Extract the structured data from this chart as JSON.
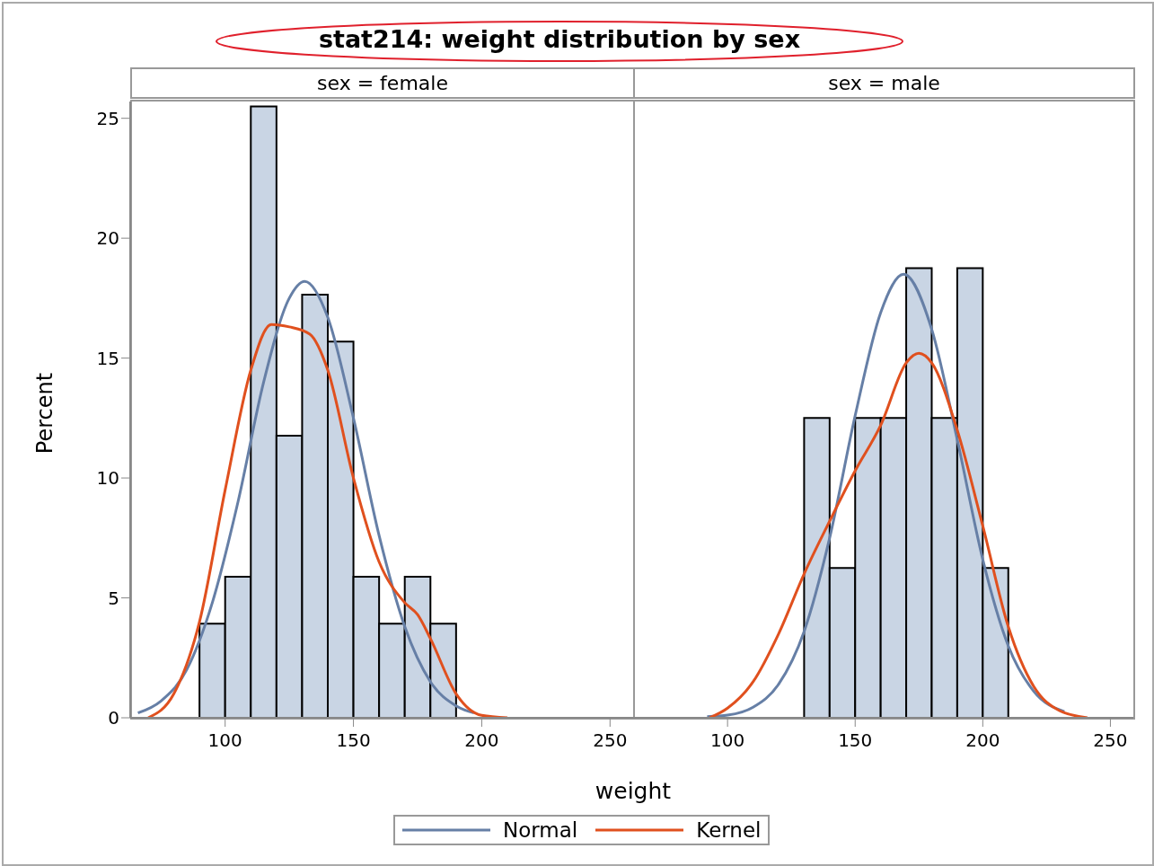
{
  "chart_data": [
    {
      "type": "histogram",
      "title": "stat214: weight distribution by sex",
      "subtitle": "sex = female",
      "xlabel": "weight",
      "ylabel": "Percent",
      "bins": [
        90,
        100,
        110,
        120,
        130,
        140,
        150,
        160,
        170,
        180,
        190
      ],
      "values": [
        3.92,
        5.88,
        25.49,
        11.76,
        17.65,
        15.69,
        5.88,
        3.92,
        5.88,
        3.92
      ],
      "color": "#c9d5e4",
      "xlim": [
        63,
        259
      ],
      "xticks": [
        100,
        150,
        200,
        250
      ],
      "ylim": [
        0,
        25.7
      ],
      "yticks": [
        0,
        5,
        10,
        15,
        20,
        25
      ],
      "legend": "bottom",
      "series": [
        {
          "type": "line",
          "name": "Normal",
          "color": "#667fa6",
          "x": [
            66,
            75,
            85,
            95,
            105,
            115,
            125,
            131,
            140,
            150,
            160,
            170,
            180,
            190,
            197
          ],
          "values": [
            0.2,
            0.7,
            2.0,
            4.8,
            9.0,
            14.0,
            17.5,
            18.2,
            16.7,
            12.5,
            7.6,
            3.8,
            1.5,
            0.5,
            0.2
          ]
        },
        {
          "type": "line",
          "name": "Kernel",
          "color": "#e0501e",
          "x": [
            70,
            80,
            90,
            100,
            110,
            118,
            125,
            133,
            140,
            150,
            160,
            170,
            175,
            180,
            190,
            200,
            210
          ],
          "values": [
            0,
            1.0,
            4.0,
            9.5,
            14.5,
            16.4,
            16.3,
            16.0,
            14.5,
            10.0,
            6.5,
            4.8,
            4.3,
            3.3,
            1.0,
            0.1,
            0
          ]
        }
      ]
    },
    {
      "type": "histogram",
      "subtitle": "sex = male",
      "bins": [
        130,
        140,
        150,
        160,
        170,
        180,
        190,
        200,
        210
      ],
      "values": [
        12.5,
        6.25,
        12.5,
        12.5,
        18.75,
        12.5,
        18.75,
        6.25
      ],
      "color": "#c9d5e4",
      "xlim": [
        63,
        259
      ],
      "xticks": [
        100,
        150,
        200,
        250
      ],
      "ylim": [
        0,
        25.7
      ],
      "yticks": [
        0,
        5,
        10,
        15,
        20,
        25
      ],
      "tick_labels": "x",
      "series": [
        {
          "type": "line",
          "color": "#667fa6",
          "x": [
            92,
            100,
            110,
            120,
            130,
            140,
            150,
            160,
            169,
            180,
            190,
            200,
            210,
            220,
            232
          ],
          "values": [
            0.05,
            0.11,
            0.44,
            1.4,
            3.6,
            7.5,
            12.6,
            16.9,
            18.5,
            16.2,
            11.6,
            6.6,
            3.0,
            1.1,
            0.26
          ]
        },
        {
          "type": "line",
          "color": "#e0501e",
          "x": [
            93,
            100,
            110,
            120,
            130,
            140,
            150,
            160,
            170,
            175,
            180,
            190,
            200,
            210,
            220,
            230,
            241
          ],
          "values": [
            0,
            0.4,
            1.5,
            3.5,
            6.0,
            8.2,
            10.3,
            12.2,
            14.8,
            15.2,
            14.8,
            12.0,
            8.0,
            3.8,
            1.3,
            0.3,
            0
          ]
        }
      ]
    }
  ]
}
